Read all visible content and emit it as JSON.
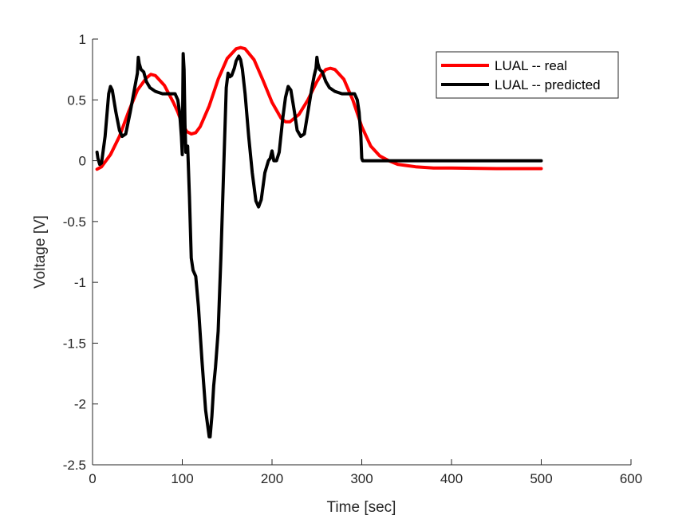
{
  "chart_data": {
    "type": "line",
    "title": "",
    "xlabel": "Time [sec]",
    "ylabel": "Voltage [V]",
    "xlim": [
      0,
      600
    ],
    "ylim": [
      -2.5,
      1
    ],
    "xticks": [
      0,
      100,
      200,
      300,
      400,
      500,
      600
    ],
    "yticks": [
      -2.5,
      -2,
      -1.5,
      -1,
      -0.5,
      0,
      0.5,
      1
    ],
    "xtick_labels": [
      "0",
      "100",
      "200",
      "300",
      "400",
      "500",
      "600"
    ],
    "ytick_labels": [
      "-2.5",
      "-2",
      "-1.5",
      "-1",
      "-0.5",
      "0",
      "0.5",
      "1"
    ],
    "grid": false,
    "legend_position": "top-right",
    "series": [
      {
        "name": "LUAL -- real",
        "color": "#ff0000",
        "x": [
          5,
          10,
          20,
          30,
          40,
          50,
          60,
          65,
          70,
          80,
          90,
          95,
          100,
          105,
          110,
          115,
          120,
          130,
          140,
          150,
          160,
          165,
          170,
          180,
          190,
          200,
          210,
          215,
          220,
          230,
          240,
          250,
          255,
          260,
          265,
          270,
          280,
          290,
          300,
          310,
          320,
          330,
          340,
          360,
          380,
          400,
          450,
          500
        ],
        "y": [
          -0.07,
          -0.05,
          0.05,
          0.2,
          0.4,
          0.58,
          0.68,
          0.71,
          0.7,
          0.62,
          0.48,
          0.4,
          0.3,
          0.24,
          0.22,
          0.23,
          0.28,
          0.45,
          0.67,
          0.84,
          0.92,
          0.93,
          0.92,
          0.83,
          0.66,
          0.48,
          0.35,
          0.32,
          0.32,
          0.38,
          0.5,
          0.65,
          0.71,
          0.75,
          0.76,
          0.75,
          0.67,
          0.5,
          0.28,
          0.12,
          0.04,
          0.0,
          -0.03,
          -0.05,
          -0.06,
          -0.06,
          -0.065,
          -0.065
        ]
      },
      {
        "name": "LUAL -- predicted",
        "color": "#000000",
        "x": [
          5,
          6,
          8,
          10,
          14,
          18,
          20,
          22,
          26,
          30,
          33,
          37,
          42,
          47,
          50,
          51,
          52,
          54,
          57,
          60,
          64,
          70,
          78,
          85,
          92,
          95,
          97,
          99,
          100,
          101,
          102,
          103,
          104,
          106,
          108,
          110,
          112,
          115,
          118,
          122,
          126,
          130,
          131,
          133,
          135,
          137,
          140,
          143,
          146,
          149,
          151,
          153,
          155,
          158,
          160,
          163,
          165,
          167,
          170,
          174,
          178,
          182,
          185,
          188,
          192,
          196,
          198,
          200,
          202,
          205,
          208,
          212,
          215,
          218,
          221,
          225,
          228,
          232,
          236,
          240,
          244,
          247,
          249,
          250,
          251,
          253,
          256,
          260,
          264,
          270,
          278,
          285,
          292,
          295,
          297,
          299,
          300,
          301,
          310,
          350,
          400,
          450,
          500
        ],
        "y": [
          0.07,
          0.02,
          -0.03,
          -0.02,
          0.2,
          0.55,
          0.61,
          0.58,
          0.4,
          0.25,
          0.2,
          0.22,
          0.4,
          0.6,
          0.72,
          0.85,
          0.8,
          0.75,
          0.73,
          0.65,
          0.6,
          0.57,
          0.55,
          0.55,
          0.55,
          0.5,
          0.4,
          0.2,
          0.05,
          0.88,
          0.75,
          0.3,
          0.07,
          0.12,
          -0.3,
          -0.8,
          -0.9,
          -0.95,
          -1.2,
          -1.65,
          -2.05,
          -2.27,
          -2.27,
          -2.1,
          -1.85,
          -1.7,
          -1.4,
          -0.8,
          -0.1,
          0.6,
          0.72,
          0.69,
          0.7,
          0.76,
          0.82,
          0.86,
          0.83,
          0.75,
          0.55,
          0.2,
          -0.1,
          -0.33,
          -0.38,
          -0.32,
          -0.1,
          0.0,
          0.02,
          0.08,
          0.0,
          0.0,
          0.07,
          0.35,
          0.52,
          0.61,
          0.58,
          0.4,
          0.25,
          0.2,
          0.22,
          0.4,
          0.58,
          0.7,
          0.76,
          0.85,
          0.8,
          0.75,
          0.73,
          0.65,
          0.6,
          0.57,
          0.55,
          0.55,
          0.55,
          0.5,
          0.4,
          0.2,
          0.02,
          0.0,
          0.0,
          0.0,
          0.0,
          0.0,
          0.0
        ]
      }
    ]
  }
}
